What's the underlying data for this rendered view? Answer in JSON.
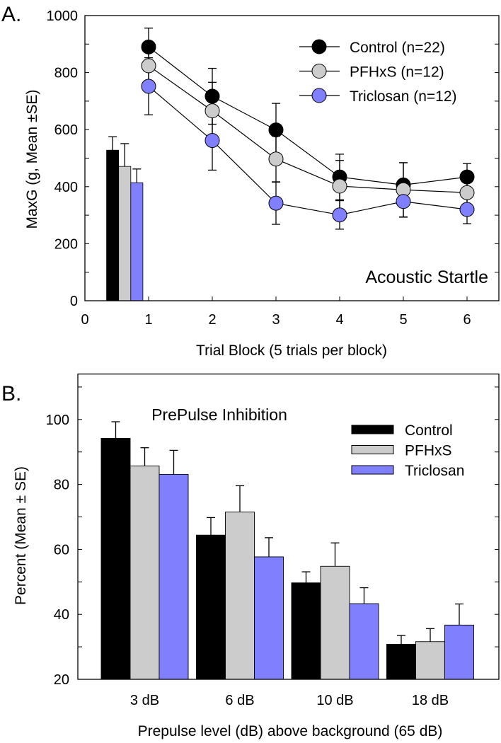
{
  "colors": {
    "control": "#000000",
    "pfhxs": "#cccccc",
    "triclosan": "#8080ff"
  },
  "chart_data": [
    {
      "panel_label": "A.",
      "type": "line",
      "title": "Acoustic Startle",
      "xlabel": "Trial Block (5 trials per block)",
      "ylabel": "MaxG (g, Mean ±SE)",
      "xlim": [
        0,
        6.5
      ],
      "ylim": [
        0,
        1000
      ],
      "xticks": [
        "0",
        "1",
        "2",
        "3",
        "4",
        "5",
        "6"
      ],
      "yticks": [
        "0",
        "200",
        "400",
        "600",
        "800",
        "1000"
      ],
      "legend_position": "top-right",
      "x": [
        1,
        2,
        3,
        4,
        5,
        6
      ],
      "series": [
        {
          "name": "Control (n=22)",
          "key": "control",
          "values": [
            890,
            717,
            599,
            434,
            406,
            434
          ],
          "se": [
            66,
            98,
            93,
            80,
            78,
            47
          ],
          "baseline": 528,
          "baseline_se": 47
        },
        {
          "name": "PFHxS (n=12)",
          "key": "pfhxs",
          "values": [
            824,
            666,
            497,
            402,
            389,
            379
          ],
          "se": [
            60,
            100,
            80,
            90,
            95,
            55
          ],
          "baseline": 471,
          "baseline_se": 80
        },
        {
          "name": "Triclosan (n=12)",
          "key": "triclosan",
          "values": [
            752,
            562,
            342,
            301,
            348,
            320
          ],
          "se": [
            100,
            104,
            74,
            50,
            55,
            50
          ],
          "baseline": 414,
          "baseline_se": 48
        }
      ],
      "grid": false
    },
    {
      "panel_label": "B.",
      "type": "bar",
      "title": "PrePulse Inhibition",
      "xlabel": "Prepulse level (dB) above background (65 dB)",
      "ylabel": "Percent  (Mean ± SE)",
      "ylim": [
        20,
        114
      ],
      "yticks": [
        "20",
        "40",
        "60",
        "80",
        "100"
      ],
      "categories": [
        "3 dB",
        "6 dB",
        "10 dB",
        "18 dB"
      ],
      "legend_position": "top-right",
      "series": [
        {
          "name": "Control",
          "key": "control",
          "values": [
            94.2,
            64.4,
            49.7,
            30.8
          ],
          "se": [
            5.1,
            5.4,
            3.4,
            2.7
          ]
        },
        {
          "name": "PFHxS",
          "key": "pfhxs",
          "values": [
            85.7,
            71.5,
            54.8,
            31.6
          ],
          "se": [
            5.6,
            8.1,
            7.2,
            4.0
          ]
        },
        {
          "name": "Triclosan",
          "key": "triclosan",
          "values": [
            83.1,
            57.7,
            43.3,
            36.7
          ],
          "se": [
            7.4,
            5.9,
            4.9,
            6.5
          ]
        }
      ],
      "grid": false
    }
  ]
}
